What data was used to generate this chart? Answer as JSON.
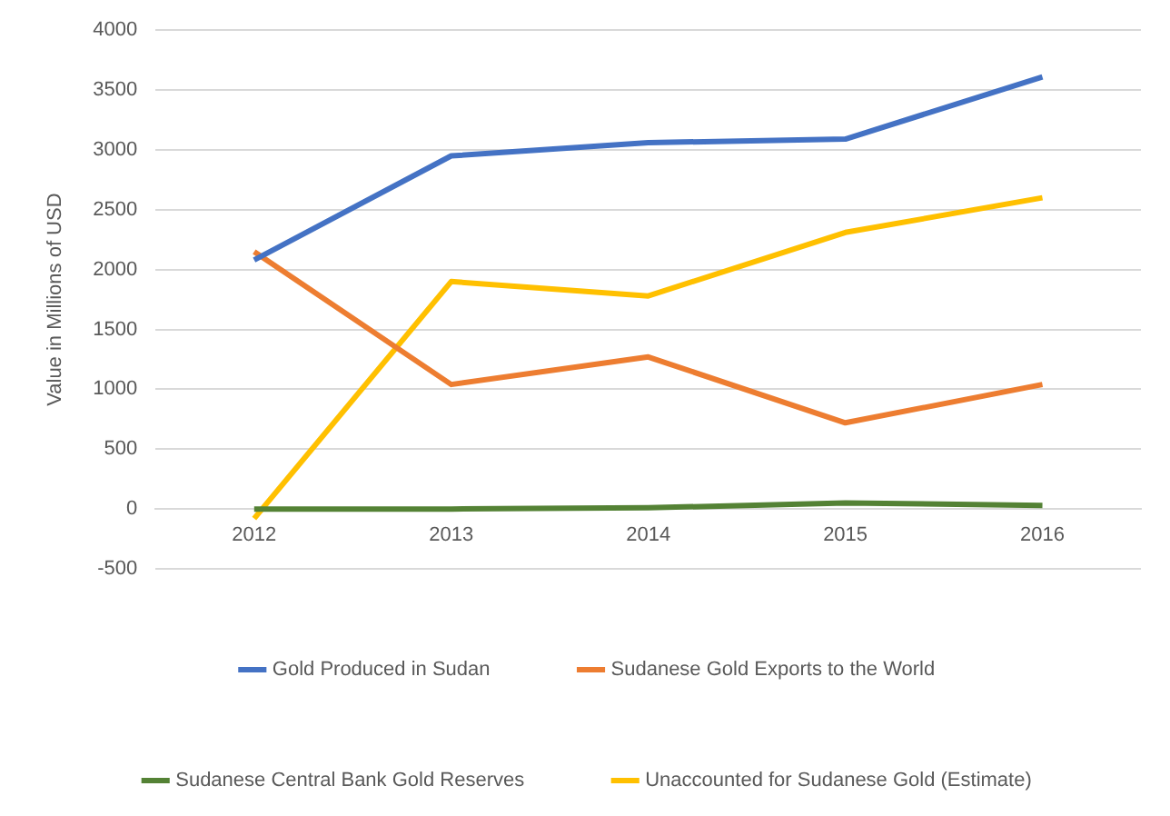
{
  "chart_data": {
    "type": "line",
    "ylabel": "Value in Millions of USD",
    "categories": [
      "2012",
      "2013",
      "2014",
      "2015",
      "2016"
    ],
    "series": [
      {
        "name": "Gold Produced in Sudan",
        "color": "#4472c4",
        "values": [
          2080,
          2950,
          3060,
          3090,
          3610
        ]
      },
      {
        "name": "Sudanese Gold Exports to the World",
        "color": "#ed7d31",
        "values": [
          2150,
          1040,
          1270,
          720,
          1040
        ]
      },
      {
        "name": "Sudanese Central Bank Gold Reserves",
        "color": "#548235",
        "values": [
          0,
          0,
          10,
          50,
          30
        ]
      },
      {
        "name": "Unaccounted for Sudanese Gold (Estimate)",
        "color": "#ffc000",
        "values": [
          -80,
          1900,
          1780,
          2310,
          2600
        ]
      }
    ],
    "ylim": [
      -500,
      4000
    ],
    "yticks": [
      -500,
      0,
      500,
      1000,
      1500,
      2000,
      2500,
      3000,
      3500,
      4000
    ],
    "grid": "y",
    "legend": "bottom",
    "marker": "none",
    "line_style": "solid"
  }
}
